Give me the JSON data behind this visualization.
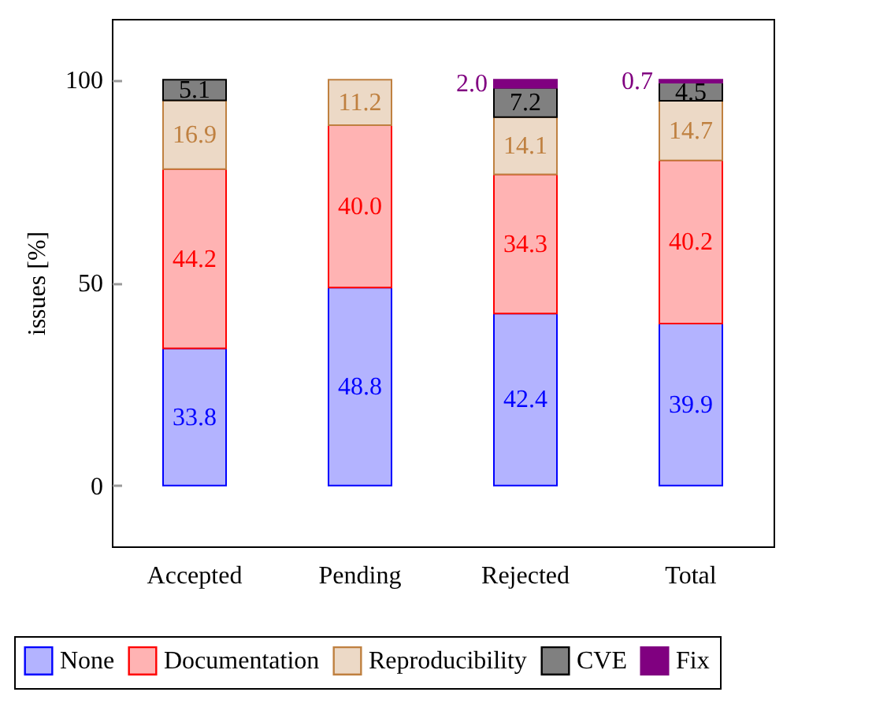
{
  "chart_data": {
    "type": "bar",
    "stacked": true,
    "ylabel": "issues [%]",
    "categories": [
      "Accepted",
      "Pending",
      "Rejected",
      "Total"
    ],
    "ylim": [
      -15,
      115
    ],
    "yticks": [
      0,
      50,
      100
    ],
    "grid": false,
    "legend": "bottom",
    "series": [
      {
        "name": "None",
        "color": "#b3b3ff",
        "values": [
          33.8,
          48.8,
          42.4,
          39.9
        ],
        "value_labels": [
          "33.8",
          "48.8",
          "42.4",
          "39.9"
        ]
      },
      {
        "name": "Documentation",
        "color": "#ffb3b3",
        "values": [
          44.2,
          40.0,
          34.3,
          40.2
        ],
        "value_labels": [
          "44.2",
          "40.0",
          "34.3",
          "40.2"
        ]
      },
      {
        "name": "Reproducibility",
        "color": "#ecd9c6",
        "values": [
          16.9,
          11.2,
          14.1,
          14.7
        ],
        "value_labels": [
          "16.9",
          "11.2",
          "14.1",
          "14.7"
        ]
      },
      {
        "name": "CVE",
        "color": "#808080",
        "values": [
          5.1,
          null,
          7.2,
          4.5
        ],
        "value_labels": [
          "5.1",
          null,
          "7.2",
          "4.5"
        ]
      },
      {
        "name": "Fix",
        "color": "#800080",
        "values": [
          null,
          null,
          2.0,
          0.7
        ],
        "value_labels": [
          null,
          null,
          "2.0",
          "0.7"
        ]
      }
    ]
  }
}
